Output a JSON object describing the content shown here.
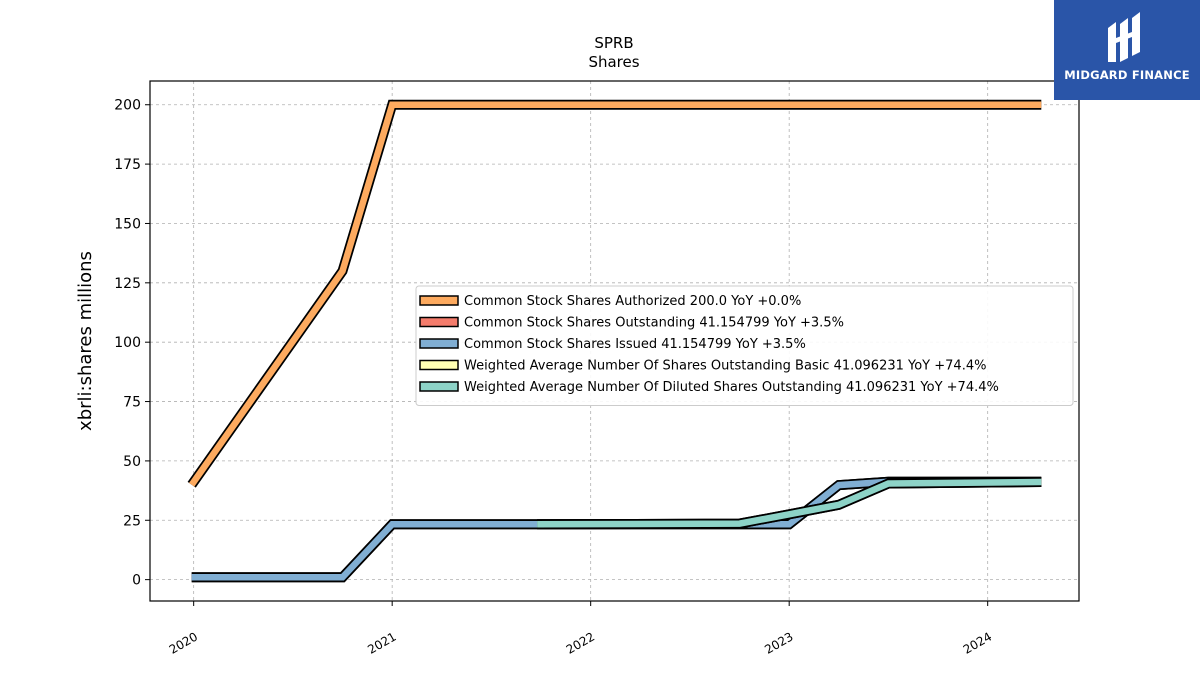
{
  "brand": {
    "name": "MIDGARD FINANCE",
    "bg_color": "#2a55a8"
  },
  "chart_data": {
    "type": "line",
    "title": "SPRB",
    "subtitle": "Shares",
    "ylabel": "xbrli:shares millions",
    "xlabel": "",
    "ylim": [
      -9,
      210
    ],
    "xlim": [
      2019.78,
      2024.46
    ],
    "yticks": [
      0,
      25,
      50,
      75,
      100,
      125,
      150,
      175,
      200
    ],
    "xticks": [
      2020,
      2021,
      2022,
      2023,
      2024
    ],
    "grid": true,
    "legend_position": "center-right",
    "series": [
      {
        "name": "Common Stock Shares Authorized",
        "legend": "Common Stock Shares Authorized  200.0 YoY +0.0%",
        "color": "#fdaa5f",
        "points": [
          [
            2019.99,
            40
          ],
          [
            2020.75,
            130
          ],
          [
            2021.0,
            200
          ],
          [
            2024.27,
            200
          ]
        ]
      },
      {
        "name": "Common Stock Shares Outstanding",
        "legend": "Common Stock Shares Outstanding  41.154799 YoY +3.5%",
        "color": "#f47c6c",
        "points": [
          [
            2019.99,
            1
          ],
          [
            2020.75,
            1
          ],
          [
            2021.0,
            23.3
          ],
          [
            2023.0,
            23.3
          ],
          [
            2023.25,
            39.8
          ],
          [
            2023.5,
            41.2
          ],
          [
            2024.27,
            41.2
          ]
        ]
      },
      {
        "name": "Common Stock Shares Issued",
        "legend": "Common Stock Shares Issued  41.154799 YoY +3.5%",
        "color": "#80aed3",
        "points": [
          [
            2019.99,
            1
          ],
          [
            2020.75,
            1
          ],
          [
            2021.0,
            23.3
          ],
          [
            2023.0,
            23.3
          ],
          [
            2023.25,
            39.8
          ],
          [
            2023.5,
            41.2
          ],
          [
            2024.27,
            41.2
          ]
        ]
      },
      {
        "name": "Weighted Average Number Of Shares Outstanding Basic",
        "legend": "Weighted Average Number Of Shares Outstanding Basic  41.096231 YoY +74.4%",
        "color": "#ffffb3",
        "points": [
          [
            2021.73,
            23.3
          ],
          [
            2022.75,
            23.6
          ],
          [
            2023.0,
            27.5
          ],
          [
            2023.25,
            31.5
          ],
          [
            2023.5,
            40.5
          ],
          [
            2024.27,
            41.1
          ]
        ]
      },
      {
        "name": "Weighted Average Number Of Diluted Shares Outstanding",
        "legend": "Weighted Average Number Of Diluted Shares Outstanding  41.096231 YoY +74.4%",
        "color": "#8dd3c7",
        "points": [
          [
            2021.73,
            23.3
          ],
          [
            2022.75,
            23.6
          ],
          [
            2023.0,
            27.5
          ],
          [
            2023.25,
            31.5
          ],
          [
            2023.5,
            40.5
          ],
          [
            2024.27,
            41.1
          ]
        ]
      }
    ]
  }
}
